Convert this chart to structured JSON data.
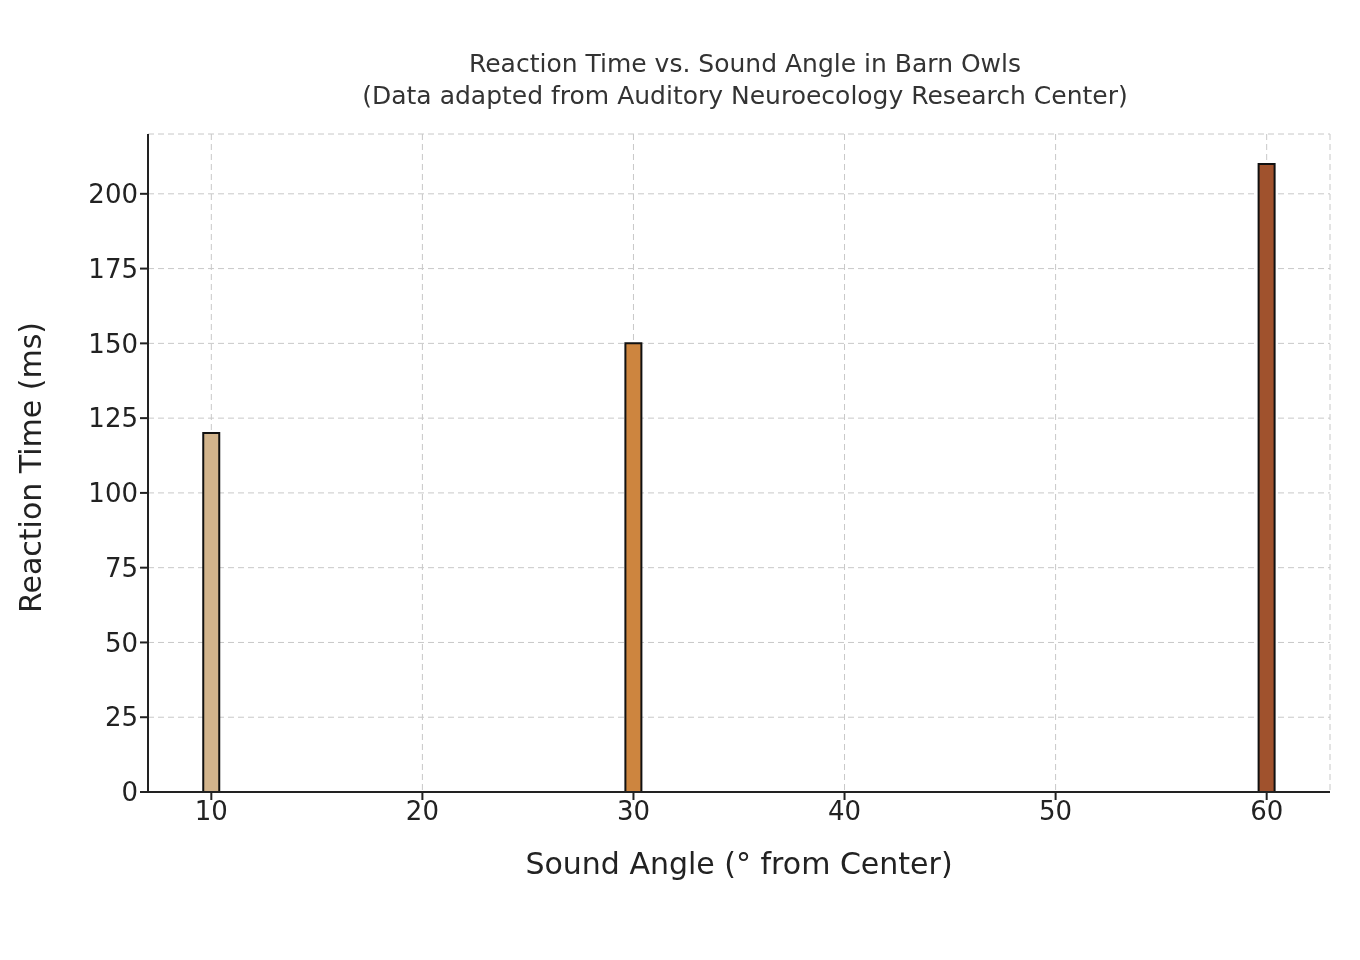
{
  "chart_data": {
    "type": "bar",
    "title": "Reaction Time vs. Sound Angle in Barn Owls",
    "subtitle": "(Data adapted from Auditory Neuroecology Research Center)",
    "xlabel": "Sound Angle (° from Center)",
    "ylabel": "Reaction Time (ms)",
    "x": [
      10,
      30,
      60
    ],
    "values": [
      120,
      150,
      210
    ],
    "colors": [
      "#d2b48c",
      "#cd853f",
      "#a0522d"
    ],
    "xlim": [
      7,
      63
    ],
    "xticks": [
      10,
      20,
      30,
      40,
      50,
      60
    ],
    "ylim": [
      0,
      220
    ],
    "yticks": [
      0,
      25,
      50,
      75,
      100,
      125,
      150,
      175,
      200
    ],
    "grid": true
  }
}
